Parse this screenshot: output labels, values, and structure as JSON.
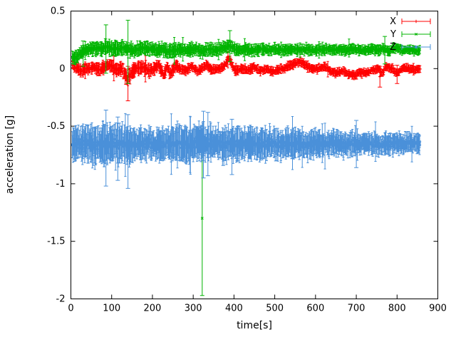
{
  "figure": {
    "background": "#ffffff",
    "border_color": "#000000"
  },
  "chart_data": {
    "type": "scatter",
    "style": "errorbars",
    "title": "",
    "xlabel": "time[s]",
    "ylabel": "acceleration [g]",
    "xlim": [
      0,
      900
    ],
    "ylim": [
      -2.0,
      0.5
    ],
    "grid": false,
    "xticks": {
      "values": [
        0,
        100,
        200,
        300,
        400,
        500,
        600,
        700,
        800,
        900
      ],
      "labels": [
        "0",
        "100",
        "200",
        "300",
        "400",
        "500",
        "600",
        "700",
        "800",
        "900"
      ]
    },
    "yticks": {
      "values": [
        0.5,
        0,
        -0.5,
        -1,
        -1.5,
        -2
      ],
      "labels": [
        "0.5",
        "0",
        "-0.5",
        "-1",
        "-1.5",
        "-2"
      ]
    },
    "legend": {
      "position": "top-right-inside",
      "frame": false,
      "entries": [
        {
          "label": "X",
          "color": "#ff0000",
          "marker": "plus"
        },
        {
          "label": "Y",
          "color": "#00b400",
          "marker": "cross"
        },
        {
          "label": "Z",
          "color": "#4a90d9",
          "marker": "star"
        }
      ]
    },
    "series": [
      {
        "name": "X",
        "color": "#ff0000",
        "marker": "plus",
        "t_start": 3,
        "t_end": 856,
        "count": 650,
        "trend": [
          [
            3,
            0.03
          ],
          [
            15,
            0.0
          ],
          [
            25,
            -0.02
          ],
          [
            40,
            0.0
          ],
          [
            55,
            0.01
          ],
          [
            70,
            -0.01
          ],
          [
            85,
            0.02
          ],
          [
            95,
            0.03
          ],
          [
            110,
            -0.01
          ],
          [
            125,
            0.0
          ],
          [
            138,
            -0.09
          ],
          [
            148,
            -0.04
          ],
          [
            160,
            0.0
          ],
          [
            178,
            0.01
          ],
          [
            192,
            -0.02
          ],
          [
            205,
            0.0
          ],
          [
            215,
            0.04
          ],
          [
            228,
            -0.06
          ],
          [
            236,
            0.02
          ],
          [
            244,
            -0.05
          ],
          [
            256,
            0.03
          ],
          [
            268,
            0.0
          ],
          [
            282,
            -0.02
          ],
          [
            296,
            0.02
          ],
          [
            310,
            -0.02
          ],
          [
            322,
            0.0
          ],
          [
            332,
            0.03
          ],
          [
            346,
            -0.01
          ],
          [
            362,
            0.0
          ],
          [
            376,
            0.02
          ],
          [
            386,
            0.08
          ],
          [
            394,
            0.05
          ],
          [
            402,
            -0.02
          ],
          [
            418,
            0.0
          ],
          [
            434,
            -0.01
          ],
          [
            450,
            0.01
          ],
          [
            465,
            -0.02
          ],
          [
            480,
            0.0
          ],
          [
            492,
            -0.03
          ],
          [
            506,
            -0.01
          ],
          [
            520,
            0.0
          ],
          [
            536,
            0.02
          ],
          [
            552,
            0.05
          ],
          [
            562,
            0.06
          ],
          [
            576,
            0.03
          ],
          [
            590,
            0.0
          ],
          [
            606,
            0.0
          ],
          [
            622,
            0.02
          ],
          [
            636,
            -0.02
          ],
          [
            650,
            -0.04
          ],
          [
            666,
            -0.02
          ],
          [
            682,
            -0.05
          ],
          [
            696,
            -0.06
          ],
          [
            710,
            -0.03
          ],
          [
            726,
            -0.04
          ],
          [
            742,
            -0.01
          ],
          [
            756,
            0.0
          ],
          [
            764,
            -0.05
          ],
          [
            772,
            0.02
          ],
          [
            786,
            0.0
          ],
          [
            800,
            -0.04
          ],
          [
            816,
            0.01
          ],
          [
            830,
            0.0
          ],
          [
            845,
            -0.01
          ],
          [
            856,
            0.0
          ]
        ],
        "noise": [
          [
            3,
            0.012
          ],
          [
            856,
            0.012
          ]
        ],
        "errbar": [
          [
            3,
            0.03
          ],
          [
            140,
            0.05
          ],
          [
            300,
            0.03
          ],
          [
            856,
            0.025
          ]
        ],
        "outliers": [
          {
            "x": 140,
            "y": -0.1,
            "lo": -0.28,
            "hi": 0.02
          },
          {
            "x": 758,
            "y": -0.07,
            "lo": -0.16,
            "hi": 0.02
          },
          {
            "x": 800,
            "y": -0.05,
            "lo": -0.13,
            "hi": 0.03
          }
        ]
      },
      {
        "name": "Y",
        "color": "#00b400",
        "marker": "cross",
        "t_start": 3,
        "t_end": 856,
        "count": 650,
        "trend": [
          [
            3,
            0.1
          ],
          [
            12,
            0.09
          ],
          [
            22,
            0.13
          ],
          [
            34,
            0.16
          ],
          [
            48,
            0.17
          ],
          [
            62,
            0.18
          ],
          [
            76,
            0.17
          ],
          [
            86,
            0.19
          ],
          [
            96,
            0.18
          ],
          [
            112,
            0.17
          ],
          [
            126,
            0.18
          ],
          [
            140,
            0.17
          ],
          [
            152,
            0.16
          ],
          [
            166,
            0.17
          ],
          [
            182,
            0.18
          ],
          [
            196,
            0.17
          ],
          [
            210,
            0.16
          ],
          [
            226,
            0.17
          ],
          [
            240,
            0.15
          ],
          [
            256,
            0.16
          ],
          [
            270,
            0.17
          ],
          [
            286,
            0.16
          ],
          [
            300,
            0.17
          ],
          [
            316,
            0.16
          ],
          [
            324,
            0.15
          ],
          [
            336,
            0.17
          ],
          [
            352,
            0.16
          ],
          [
            366,
            0.17
          ],
          [
            380,
            0.19
          ],
          [
            390,
            0.2
          ],
          [
            402,
            0.17
          ],
          [
            418,
            0.16
          ],
          [
            434,
            0.17
          ],
          [
            450,
            0.16
          ],
          [
            466,
            0.17
          ],
          [
            482,
            0.16
          ],
          [
            498,
            0.17
          ],
          [
            514,
            0.16
          ],
          [
            530,
            0.16
          ],
          [
            546,
            0.17
          ],
          [
            562,
            0.16
          ],
          [
            578,
            0.17
          ],
          [
            594,
            0.16
          ],
          [
            610,
            0.16
          ],
          [
            626,
            0.17
          ],
          [
            642,
            0.16
          ],
          [
            658,
            0.17
          ],
          [
            674,
            0.16
          ],
          [
            690,
            0.17
          ],
          [
            706,
            0.16
          ],
          [
            722,
            0.16
          ],
          [
            738,
            0.17
          ],
          [
            754,
            0.16
          ],
          [
            770,
            0.17
          ],
          [
            780,
            0.15
          ],
          [
            792,
            0.18
          ],
          [
            804,
            0.17
          ],
          [
            818,
            0.16
          ],
          [
            832,
            0.16
          ],
          [
            846,
            0.16
          ],
          [
            856,
            0.16
          ]
        ],
        "noise": [
          [
            3,
            0.012
          ],
          [
            856,
            0.012
          ]
        ],
        "errbar": [
          [
            3,
            0.04
          ],
          [
            100,
            0.05
          ],
          [
            400,
            0.04
          ],
          [
            856,
            0.03
          ]
        ],
        "outliers": [
          {
            "x": 30,
            "y": 0.13,
            "lo": 0.02,
            "hi": 0.24
          },
          {
            "x": 86,
            "y": 0.19,
            "lo": -0.04,
            "hi": 0.38
          },
          {
            "x": 140,
            "y": 0.17,
            "lo": -0.13,
            "hi": 0.42
          },
          {
            "x": 322,
            "y": -1.3,
            "lo": -1.97,
            "hi": -0.63
          },
          {
            "x": 390,
            "y": 0.2,
            "lo": 0.06,
            "hi": 0.33
          },
          {
            "x": 770,
            "y": 0.16,
            "lo": 0.04,
            "hi": 0.28
          }
        ]
      },
      {
        "name": "Z",
        "color": "#4a90d9",
        "marker": "star",
        "t_start": 3,
        "t_end": 856,
        "count": 750,
        "trend": [
          [
            3,
            -0.66
          ],
          [
            30,
            -0.65
          ],
          [
            60,
            -0.66
          ],
          [
            90,
            -0.66
          ],
          [
            120,
            -0.66
          ],
          [
            150,
            -0.66
          ],
          [
            180,
            -0.65
          ],
          [
            210,
            -0.66
          ],
          [
            240,
            -0.65
          ],
          [
            270,
            -0.66
          ],
          [
            300,
            -0.65
          ],
          [
            320,
            -0.63
          ],
          [
            340,
            -0.66
          ],
          [
            370,
            -0.65
          ],
          [
            400,
            -0.66
          ],
          [
            430,
            -0.65
          ],
          [
            460,
            -0.66
          ],
          [
            490,
            -0.65
          ],
          [
            520,
            -0.66
          ],
          [
            550,
            -0.65
          ],
          [
            580,
            -0.66
          ],
          [
            610,
            -0.65
          ],
          [
            640,
            -0.65
          ],
          [
            670,
            -0.66
          ],
          [
            700,
            -0.65
          ],
          [
            730,
            -0.65
          ],
          [
            760,
            -0.66
          ],
          [
            790,
            -0.65
          ],
          [
            820,
            -0.65
          ],
          [
            856,
            -0.65
          ]
        ],
        "noise": [
          [
            3,
            0.042
          ],
          [
            200,
            0.038
          ],
          [
            400,
            0.036
          ],
          [
            650,
            0.03
          ],
          [
            856,
            0.028
          ]
        ],
        "errbar": [
          [
            3,
            0.11
          ],
          [
            85,
            0.13
          ],
          [
            200,
            0.1
          ],
          [
            330,
            0.12
          ],
          [
            500,
            0.1
          ],
          [
            650,
            0.08
          ],
          [
            856,
            0.06
          ]
        ],
        "outliers": [
          {
            "x": 86,
            "y": -0.66,
            "lo": -1.02,
            "hi": -0.36
          },
          {
            "x": 115,
            "y": -0.68,
            "lo": -0.97,
            "hi": -0.42
          },
          {
            "x": 140,
            "y": -0.67,
            "lo": -1.04,
            "hi": -0.4
          },
          {
            "x": 325,
            "y": -0.6,
            "lo": -0.95,
            "hi": -0.37
          },
          {
            "x": 336,
            "y": -0.65,
            "lo": -0.93,
            "hi": -0.38
          },
          {
            "x": 395,
            "y": -0.66,
            "lo": -0.92,
            "hi": -0.44
          },
          {
            "x": 700,
            "y": -0.65,
            "lo": -0.86,
            "hi": -0.45
          }
        ]
      }
    ]
  }
}
